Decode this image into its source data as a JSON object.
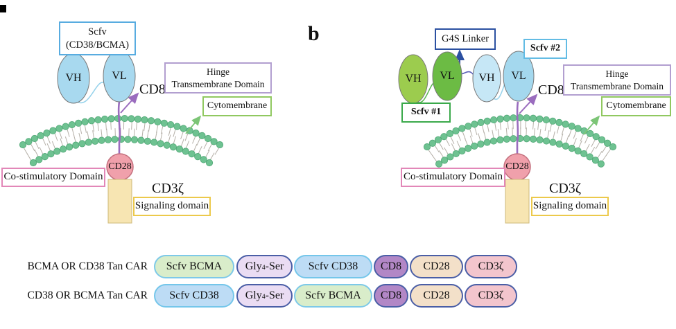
{
  "figure": {
    "panel_a": {
      "scfv_box": {
        "line1": "Scfv",
        "line2": "(CD38/BCMA)"
      },
      "vh": "VH",
      "vl": "VL",
      "cd8": "CD8",
      "hinge_box": {
        "line1": "Hinge",
        "line2": "Transmembrane Domain"
      },
      "cytomembrane": "Cytomembrane",
      "co_stimulatory": "Co-stimulatory Domain",
      "cd28": "CD28",
      "cd3_zeta": "CD3ζ",
      "signaling": "Signaling domain"
    },
    "panel_b": {
      "panel_label": "b",
      "g4s_linker": "G4S Linker",
      "scfv1": "Scfv #1",
      "scfv2": "Scfv #2",
      "vh1": "VH",
      "vl1": "VL",
      "vh2": "VH",
      "vl2": "VL",
      "cd8": "CD8",
      "hinge_box": {
        "line1": "Hinge",
        "line2": "Transmembrane Domain"
      },
      "cytomembrane": "Cytomembrane",
      "co_stimulatory": "Co-stimulatory Domain",
      "cd28": "CD28",
      "cd3_zeta": "CD3ζ",
      "signaling": "Signaling domain"
    },
    "constructs": {
      "rows": [
        {
          "label": "BCMA OR CD38 Tan CAR",
          "segments": [
            {
              "text": "Scfv BCMA",
              "fill": "#d9edca",
              "border": "#7dc9e8"
            },
            {
              "parts": [
                {
                  "t": "Gly"
                },
                {
                  "t": "4",
                  "sub": true
                },
                {
                  "t": "-Ser"
                }
              ],
              "fill": "#eadcf3",
              "border": "#4a5ea6"
            },
            {
              "text": "Scfv CD38",
              "fill": "#bddcf5",
              "border": "#74c6ea"
            },
            {
              "text": "CD8",
              "fill": "#b287c6",
              "border": "#4a5ea6"
            },
            {
              "text": "CD28",
              "fill": "#f3e0c9",
              "border": "#4a5ea6"
            },
            {
              "text": "CD3ζ",
              "fill": "#f3c5cd",
              "border": "#4a5ea6"
            }
          ]
        },
        {
          "label": "CD38 OR BCMA Tan CAR",
          "segments": [
            {
              "text": "Scfv CD38",
              "fill": "#bddcf5",
              "border": "#74c6ea"
            },
            {
              "parts": [
                {
                  "t": "Gly"
                },
                {
                  "t": "4",
                  "sub": true
                },
                {
                  "t": "-Ser"
                }
              ],
              "fill": "#eadcf3",
              "border": "#4a5ea6"
            },
            {
              "text": "Scfv BCMA",
              "fill": "#d9edca",
              "border": "#7dc9e8"
            },
            {
              "text": "CD8",
              "fill": "#b287c6",
              "border": "#4a5ea6"
            },
            {
              "text": "CD28",
              "fill": "#f3e0c9",
              "border": "#4a5ea6"
            },
            {
              "text": "CD3ζ",
              "fill": "#f3c5cd",
              "border": "#4a5ea6"
            }
          ]
        }
      ]
    },
    "colors": {
      "membrane_head": "#6ec291",
      "membrane_head_stroke": "#52a877",
      "membrane_tail": "#b5b0a8",
      "scfv_blue_vh": "#a8d9ef",
      "scfv_blue_vl": "#a8d9ef",
      "scfv_b_blue_vh": "#c6e7f6",
      "scfv_b_blue_vl": "#a4d8ee",
      "scfv_green_vh": "#9ccc4e",
      "scfv_green_vl": "#6cbb44",
      "purple_connector": "#9a6cbe",
      "green_arrow": "#7cc576",
      "dark_blue_arrow": "#2b50a1",
      "cd28_fill": "#f0a0ab",
      "cd28_stroke": "#c4717f",
      "signal_rect_fill": "#f7e5b2",
      "signal_rect_stroke": "#cdb97a",
      "box_scfv_border": "#58ace0",
      "box_hinge_border": "#b29fd0",
      "box_cyto_border": "#90c860",
      "box_costim_border": "#e287b8",
      "box_signaling_border": "#ecc94b",
      "box_g4s_border": "#2b50a1",
      "box_scfv1_border": "#3aa94a",
      "box_scfv2_border": "#63bce4"
    }
  }
}
